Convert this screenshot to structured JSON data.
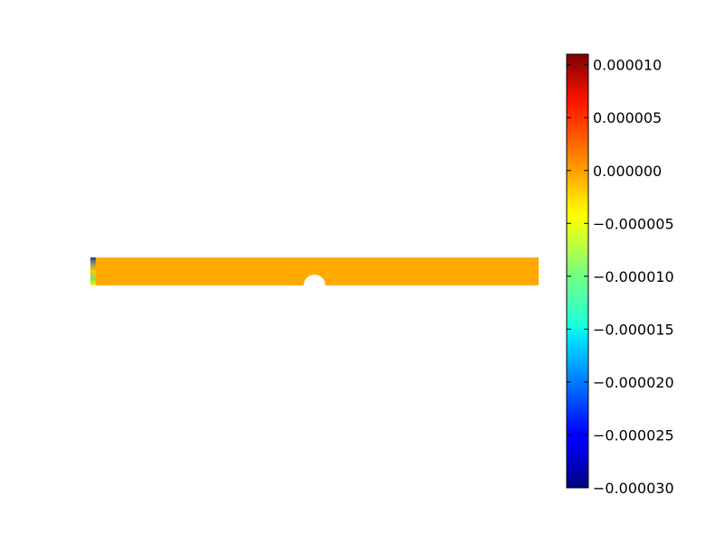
{
  "chart_data": {
    "type": "heatmap",
    "title": "",
    "xlabel": "",
    "ylabel": "",
    "grid": false,
    "field": {
      "uniform_value": 0.0,
      "notes_visible": "uniform field with a small circular hole at the bottom edge near the centre and a small multicoloured disturbance at the left end"
    },
    "colorbar": {
      "colormap": "jet",
      "min": -3e-05,
      "max": 1.1e-05,
      "ticks": [
        1e-05,
        5e-06,
        0.0,
        -5e-06,
        -1e-05,
        -1.5e-05,
        -2e-05,
        -2.5e-05,
        -3e-05
      ],
      "tick_labels": [
        "0.000010",
        "0.000005",
        "0.000000",
        "−0.000005",
        "−0.000010",
        "−0.000015",
        "−0.000020",
        "−0.000025",
        "−0.000030"
      ]
    }
  },
  "colors": {
    "field_fill": "#ffaa00",
    "background": "#ffffff"
  }
}
